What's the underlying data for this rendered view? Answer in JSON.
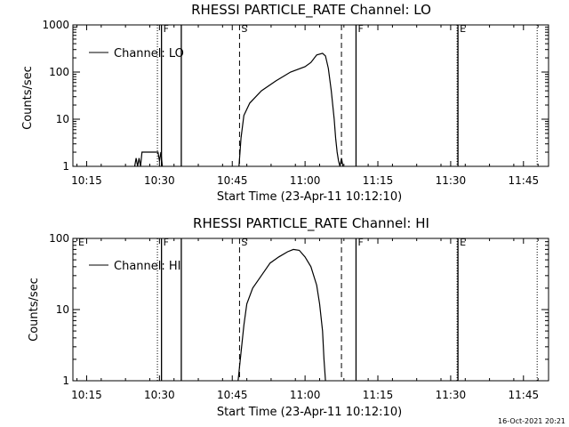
{
  "stamp": "16-Oct-2021 20:21",
  "colors": {
    "background": "#ffffff",
    "foreground": "#000000"
  },
  "chart_data": [
    {
      "type": "line",
      "title": "RHESSI PARTICLE_RATE Channel: LO",
      "xlabel": "Start Time (23-Apr-11 10:12:10)",
      "ylabel": "Counts/sec",
      "yscale": "log",
      "ylim": [
        1,
        1000
      ],
      "yticks": [
        1,
        10,
        100,
        1000
      ],
      "ytick_labels": [
        "1",
        "10",
        "100",
        "1000"
      ],
      "xlim": [
        10.2028,
        11.8361
      ],
      "xticks": [
        10.25,
        10.5,
        10.75,
        11.0,
        11.25,
        11.5,
        11.75
      ],
      "xtick_labels": [
        "10:15",
        "10:30",
        "10:45",
        "11:00",
        "11:15",
        "11:30",
        "11:45"
      ],
      "legend": {
        "label": "Channel: LO",
        "position": "top-left"
      },
      "markers": [
        {
          "x": 10.507,
          "style": "solid",
          "label": "F"
        },
        {
          "x": 10.493,
          "style": "dotted",
          "label": ""
        },
        {
          "x": 10.575,
          "style": "solid",
          "label": ""
        },
        {
          "x": 10.775,
          "style": "dashed",
          "label": "S"
        },
        {
          "x": 11.125,
          "style": "dashed",
          "label": ""
        },
        {
          "x": 11.175,
          "style": "solid",
          "label": "F"
        },
        {
          "x": 11.525,
          "style": "solid",
          "label": "E"
        },
        {
          "x": 11.522,
          "style": "dotted",
          "label": ""
        },
        {
          "x": 11.797,
          "style": "dotted",
          "label": ""
        }
      ],
      "series": [
        {
          "name": "Channel: LO",
          "segments": [
            [
              [
                10.415,
                1
              ],
              [
                10.42,
                1.5
              ],
              [
                10.425,
                1
              ],
              [
                10.43,
                1.5
              ],
              [
                10.435,
                1
              ],
              [
                10.44,
                2
              ],
              [
                10.495,
                2
              ],
              [
                10.5,
                1.3
              ],
              [
                10.505,
                2
              ],
              [
                10.51,
                1
              ]
            ],
            [
              [
                10.773,
                1
              ],
              [
                10.78,
                4
              ],
              [
                10.79,
                12
              ],
              [
                10.81,
                22
              ],
              [
                10.85,
                40
              ],
              [
                10.9,
                65
              ],
              [
                10.95,
                100
              ],
              [
                11.0,
                130
              ],
              [
                11.02,
                160
              ],
              [
                11.04,
                230
              ],
              [
                11.06,
                250
              ],
              [
                11.07,
                220
              ],
              [
                11.08,
                120
              ],
              [
                11.09,
                40
              ],
              [
                11.1,
                10
              ],
              [
                11.105,
                4
              ],
              [
                11.11,
                2
              ],
              [
                11.115,
                1.3
              ],
              [
                11.12,
                1
              ],
              [
                11.125,
                1.5
              ],
              [
                11.13,
                1
              ]
            ]
          ]
        }
      ]
    },
    {
      "type": "line",
      "title": "RHESSI PARTICLE_RATE Channel: HI",
      "xlabel": "Start Time (23-Apr-11 10:12:10)",
      "ylabel": "Counts/sec",
      "yscale": "log",
      "ylim": [
        1,
        100
      ],
      "yticks": [
        1,
        10,
        100
      ],
      "ytick_labels": [
        "1",
        "10",
        "100"
      ],
      "xlim": [
        10.2028,
        11.8361
      ],
      "xticks": [
        10.25,
        10.5,
        10.75,
        11.0,
        11.25,
        11.5,
        11.75
      ],
      "xtick_labels": [
        "10:15",
        "10:30",
        "10:45",
        "11:00",
        "11:15",
        "11:30",
        "11:45"
      ],
      "legend": {
        "label": "Channel: HI",
        "position": "top-left"
      },
      "markers": [
        {
          "x": 10.215,
          "style": "none",
          "label": "E"
        },
        {
          "x": 10.507,
          "style": "solid",
          "label": "F"
        },
        {
          "x": 10.493,
          "style": "dotted",
          "label": ""
        },
        {
          "x": 10.575,
          "style": "solid",
          "label": ""
        },
        {
          "x": 10.775,
          "style": "dashed",
          "label": "S"
        },
        {
          "x": 11.125,
          "style": "dashed",
          "label": ""
        },
        {
          "x": 11.175,
          "style": "solid",
          "label": "F"
        },
        {
          "x": 11.525,
          "style": "solid",
          "label": "E"
        },
        {
          "x": 11.522,
          "style": "dotted",
          "label": ""
        },
        {
          "x": 11.797,
          "style": "dotted",
          "label": ""
        }
      ],
      "series": [
        {
          "name": "Channel: HI",
          "segments": [
            [
              [
                10.77,
                1
              ],
              [
                10.78,
                2.5
              ],
              [
                10.79,
                6
              ],
              [
                10.8,
                12
              ],
              [
                10.82,
                20
              ],
              [
                10.85,
                30
              ],
              [
                10.88,
                45
              ],
              [
                10.91,
                55
              ],
              [
                10.94,
                65
              ],
              [
                10.96,
                70
              ],
              [
                10.98,
                68
              ],
              [
                11.0,
                55
              ],
              [
                11.02,
                40
              ],
              [
                11.04,
                22
              ],
              [
                11.05,
                12
              ],
              [
                11.06,
                5
              ],
              [
                11.065,
                2
              ],
              [
                11.07,
                1
              ]
            ]
          ]
        }
      ]
    }
  ]
}
